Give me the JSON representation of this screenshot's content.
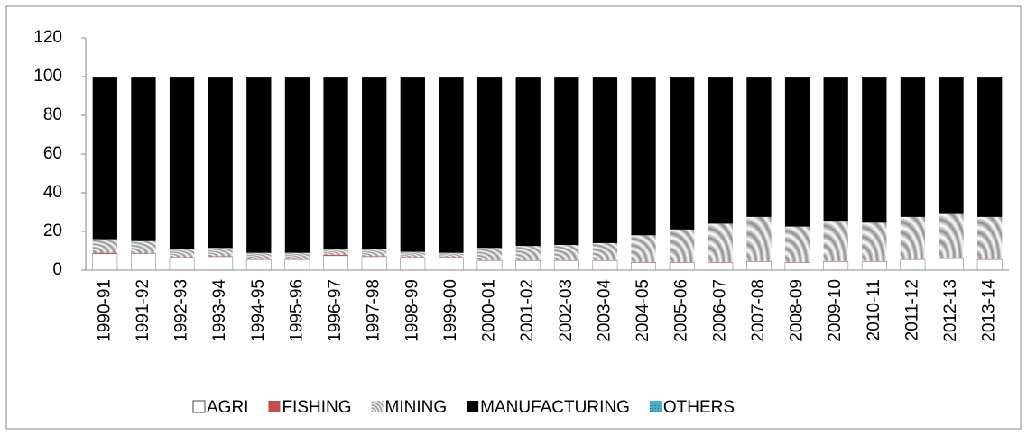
{
  "chart_data": {
    "type": "stacked_bar",
    "categories": [
      "1990-91",
      "1991-92",
      "1992-93",
      "1993-94",
      "1994-95",
      "1995-96",
      "1996-97",
      "1997-98",
      "1998-99",
      "1999-00",
      "2000-01",
      "2001-02",
      "2002-03",
      "2003-04",
      "2004-05",
      "2005-06",
      "2006-07",
      "2007-08",
      "2008-09",
      "2009-10",
      "2010-11",
      "2011-12",
      "2012-13",
      "2013-14"
    ],
    "series": [
      {
        "name": "AGRI",
        "color": "#ffffff",
        "values": [
          8.5,
          8.5,
          6.5,
          7,
          5.5,
          5.5,
          7.5,
          7,
          6.5,
          6.5,
          5,
          5,
          5,
          5,
          4,
          4,
          4,
          4.5,
          4,
          4.5,
          4.5,
          5.5,
          6,
          5.5
        ]
      },
      {
        "name": "FISHING",
        "color": "#c0504d",
        "values": [
          0.5,
          0.2,
          0.2,
          0.2,
          0.2,
          0.2,
          0.5,
          0.2,
          0.2,
          0.2,
          0.2,
          0.2,
          0.2,
          0.2,
          0.2,
          0.2,
          0.2,
          0.2,
          0.2,
          0.2,
          0.2,
          0.2,
          0.2,
          0.2
        ]
      },
      {
        "name": "MINING",
        "color": "#a6a6a6",
        "values": [
          7,
          6.3,
          4.3,
          4.3,
          3.3,
          3.3,
          3,
          3.8,
          2.8,
          2.3,
          6.3,
          7.3,
          7.8,
          8.8,
          13.8,
          16.8,
          19.8,
          22.8,
          18.3,
          20.8,
          19.8,
          21.8,
          22.8,
          21.8
        ]
      },
      {
        "name": "MANUFACTURING",
        "color": "#000000",
        "values": [
          83.5,
          84.5,
          88.5,
          88,
          90.5,
          90.5,
          88.5,
          88.5,
          90,
          90.5,
          88,
          87,
          86.5,
          85.5,
          81.5,
          78.5,
          75.5,
          72,
          77,
          74,
          75,
          72,
          70.5,
          72
        ]
      },
      {
        "name": "OTHERS",
        "color": "#4bacc6",
        "values": [
          0.5,
          0.5,
          0.5,
          0.5,
          0.5,
          0.5,
          0.5,
          0.5,
          0.5,
          0.5,
          0.5,
          0.5,
          0.5,
          0.5,
          0.5,
          0.5,
          0.5,
          0.5,
          0.5,
          0.5,
          0.5,
          0.5,
          0.5,
          0.5
        ]
      }
    ],
    "ylim": [
      0,
      120
    ],
    "yticks": [
      0,
      20,
      40,
      60,
      80,
      100,
      120
    ],
    "grid": false,
    "legend": "bottom"
  }
}
